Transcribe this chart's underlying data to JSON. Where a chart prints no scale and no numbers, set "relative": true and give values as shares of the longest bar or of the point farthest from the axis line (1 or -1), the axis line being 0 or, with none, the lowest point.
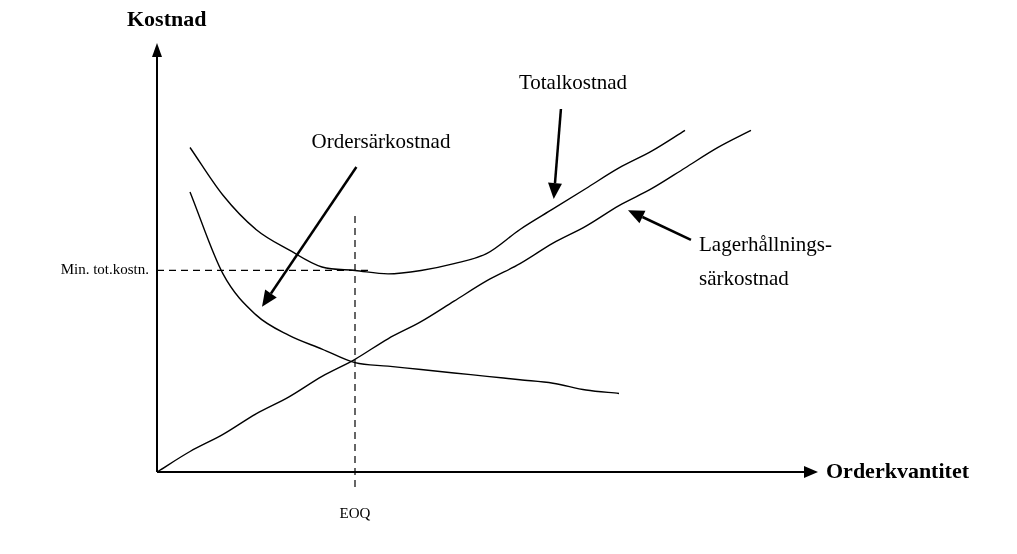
{
  "chart_data": {
    "type": "line",
    "relative": true,
    "xlabel": "Orderkvantitet",
    "ylabel": "Kostnad",
    "categories": [
      null,
      null,
      null,
      null,
      null,
      null,
      null,
      null,
      null,
      null,
      null,
      null,
      null,
      null,
      null,
      null,
      null,
      null,
      null
    ],
    "series": [
      {
        "name": "Totalkostnad",
        "color": "#000000",
        "values": [
          null,
          0.95,
          0.81,
          0.71,
          0.65,
          0.6,
          0.59,
          0.58,
          0.59,
          0.61,
          0.64,
          0.71,
          0.77,
          0.83,
          0.89,
          0.94,
          1.0,
          null,
          null
        ]
      },
      {
        "name": "Ordersärkostnad",
        "color": "#000000",
        "values": [
          null,
          0.82,
          0.58,
          0.46,
          0.4,
          0.36,
          0.32,
          0.31,
          0.3,
          0.29,
          0.28,
          0.27,
          0.26,
          0.24,
          0.23,
          null,
          null,
          null,
          null
        ]
      },
      {
        "name": "Lagerhållnings-särkostnad",
        "color": "#000000",
        "values": [
          0,
          0.06,
          0.11,
          0.17,
          0.22,
          0.28,
          0.33,
          0.39,
          0.44,
          0.5,
          0.56,
          0.61,
          0.67,
          0.72,
          0.78,
          0.83,
          0.89,
          0.95,
          1.0
        ]
      }
    ],
    "ref_lines": [
      {
        "axis": "y",
        "value": 0.59,
        "label": "Min. tot.kostn.",
        "color": "#000000",
        "line_style": "dashed"
      },
      {
        "axis": "x",
        "label": "EOQ",
        "color": "#000000",
        "line_style": "dashed"
      }
    ],
    "marker": "none",
    "line_style": "solid",
    "grid": false,
    "legend": false
  }
}
